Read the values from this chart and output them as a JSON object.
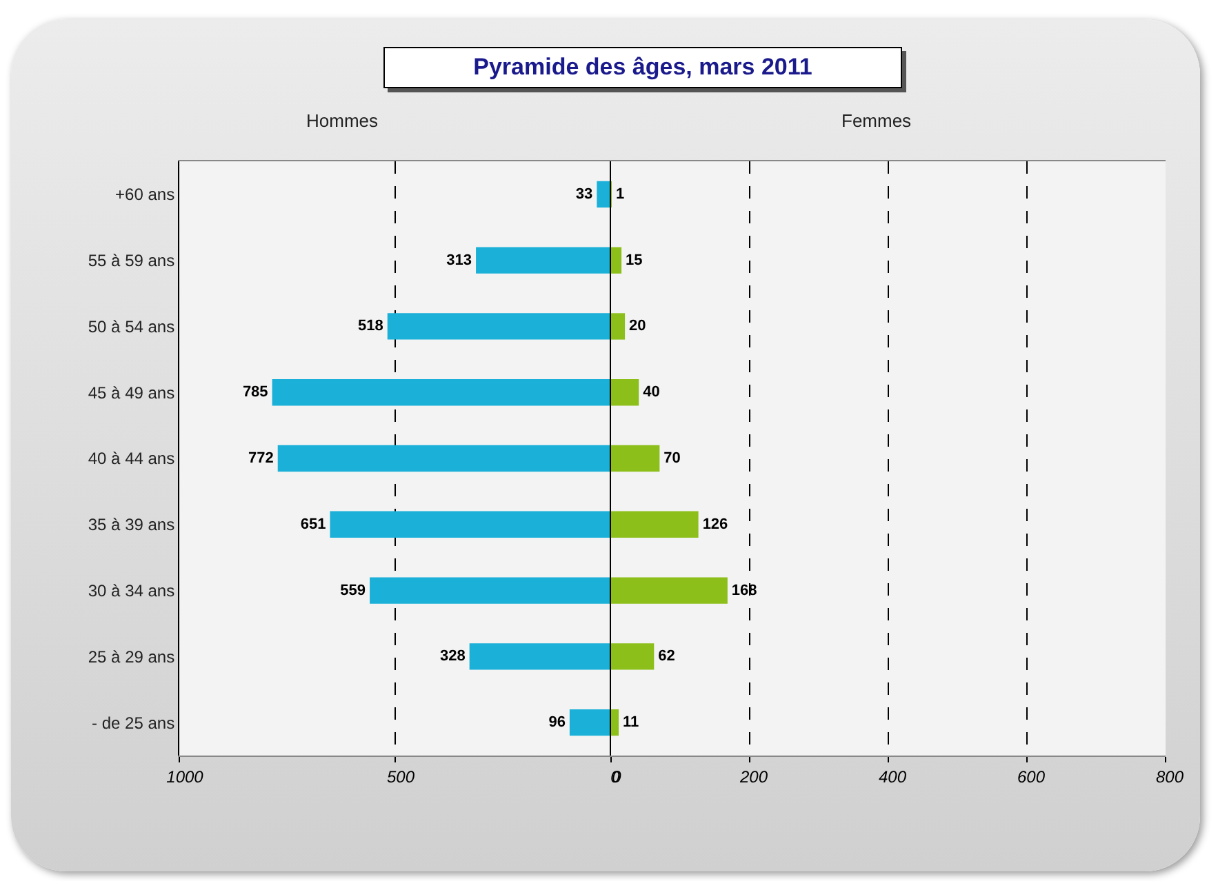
{
  "chart_data": [
    {
      "type": "bar",
      "orientation": "horizontal",
      "title": "Pyramide des âges, mars 2011",
      "subtitle": "Hommes",
      "categories": [
        "+60 ans",
        "55 à 59 ans",
        "50 à 54 ans",
        "45 à 49 ans",
        "40 à 44 ans",
        "35 à 39 ans",
        "30 à 34 ans",
        "25 à 29 ans",
        "- de 25 ans"
      ],
      "color": "#1ab0d8",
      "values": [
        33,
        313,
        518,
        785,
        772,
        651,
        559,
        328,
        96
      ],
      "xlim": [
        1000,
        0
      ],
      "xticks": [
        1000,
        500,
        0
      ],
      "grid": "x",
      "data_labels": true
    },
    {
      "type": "bar",
      "orientation": "horizontal",
      "subtitle": "Femmes",
      "categories": [
        null,
        null,
        null,
        null,
        null,
        null,
        null,
        null,
        null
      ],
      "color": "#8cbf1a",
      "values": [
        1,
        15,
        20,
        40,
        70,
        126,
        168,
        62,
        11
      ],
      "xlim": [
        0,
        800
      ],
      "xticks": [
        0,
        200,
        400,
        600,
        800
      ],
      "grid": "x",
      "data_labels": true,
      "tick_labels": "x"
    }
  ]
}
